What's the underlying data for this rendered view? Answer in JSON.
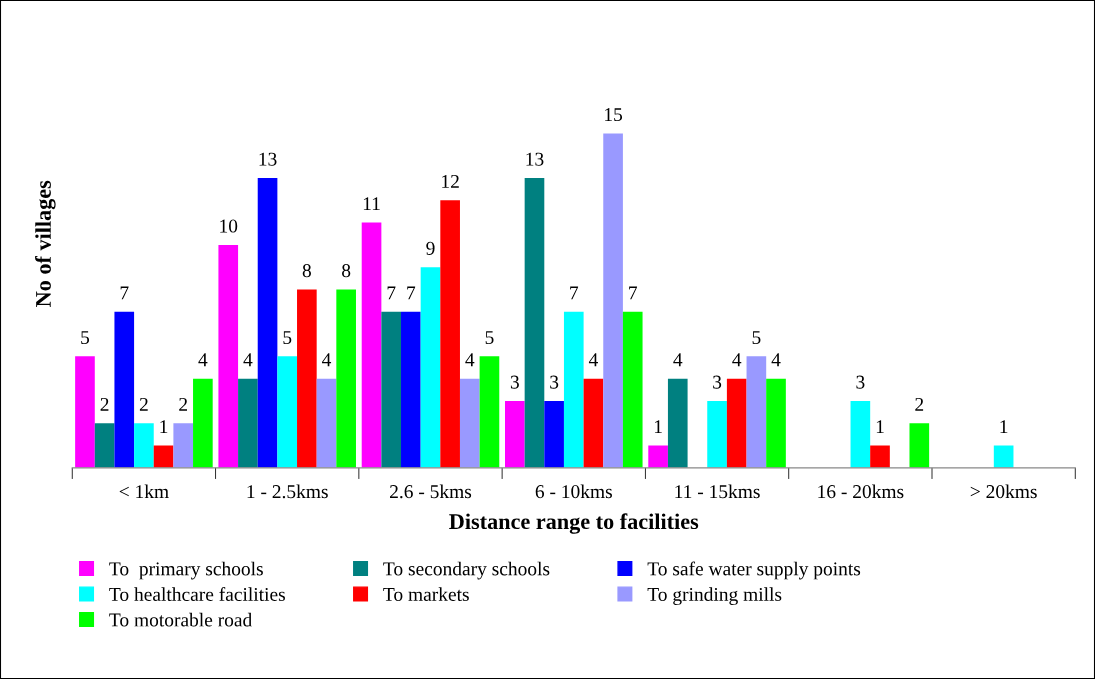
{
  "chart_data": {
    "type": "bar",
    "xlabel": "Distance range to facilities",
    "ylabel": "No of villages",
    "categories": [
      "< 1km",
      "1 - 2.5kms",
      "2.6 - 5kms",
      "6 - 10kms",
      "11 - 15kms",
      "16 - 20kms",
      "> 20kms"
    ],
    "series": [
      {
        "name": "To  primary schools",
        "color": "#ff00ff",
        "values": [
          5,
          10,
          11,
          3,
          1,
          null,
          null
        ]
      },
      {
        "name": "To secondary schools",
        "color": "#008080",
        "values": [
          2,
          4,
          7,
          13,
          4,
          null,
          null
        ]
      },
      {
        "name": "To safe water supply points",
        "color": "#0000ff",
        "values": [
          7,
          13,
          7,
          3,
          null,
          null,
          null
        ]
      },
      {
        "name": "To healthcare facilities",
        "color": "#00ffff",
        "values": [
          2,
          5,
          9,
          7,
          3,
          3,
          1
        ]
      },
      {
        "name": "To markets",
        "color": "#ff0000",
        "values": [
          1,
          8,
          12,
          4,
          4,
          1,
          null
        ]
      },
      {
        "name": "To grinding mills",
        "color": "#9999ff",
        "values": [
          2,
          4,
          4,
          15,
          5,
          null,
          null
        ]
      },
      {
        "name": "To motorable road",
        "color": "#00ff00",
        "values": [
          4,
          8,
          5,
          7,
          4,
          2,
          null
        ]
      }
    ],
    "data_labels": true,
    "legend": "bottom",
    "grid": false
  }
}
